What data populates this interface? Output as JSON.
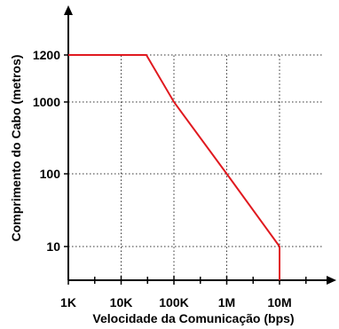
{
  "chart_data": {
    "type": "line",
    "title": "",
    "xlabel": "Velocidade da Comunicação (bps)",
    "ylabel": "Comprimento do Cabo (metros)",
    "x_scale": "log",
    "x_ticks": [
      {
        "value": 1000,
        "label": "1K"
      },
      {
        "value": 10000,
        "label": "10K"
      },
      {
        "value": 100000,
        "label": "100K"
      },
      {
        "value": 1000000,
        "label": "1M"
      },
      {
        "value": 10000000,
        "label": "10M"
      }
    ],
    "y_ticks": [
      {
        "value": 10,
        "label": "10"
      },
      {
        "value": 100,
        "label": "100"
      },
      {
        "value": 1000,
        "label": "1000"
      },
      {
        "value": 1200,
        "label": "1200"
      }
    ],
    "grid": true,
    "grid_style": "dotted",
    "legend": "none",
    "series": [
      {
        "color": "#e0191f",
        "x": [
          1000,
          30000,
          100000,
          1000000,
          10000000,
          10000000
        ],
        "y": [
          1200,
          1200,
          1000,
          100,
          10,
          0
        ]
      }
    ]
  }
}
